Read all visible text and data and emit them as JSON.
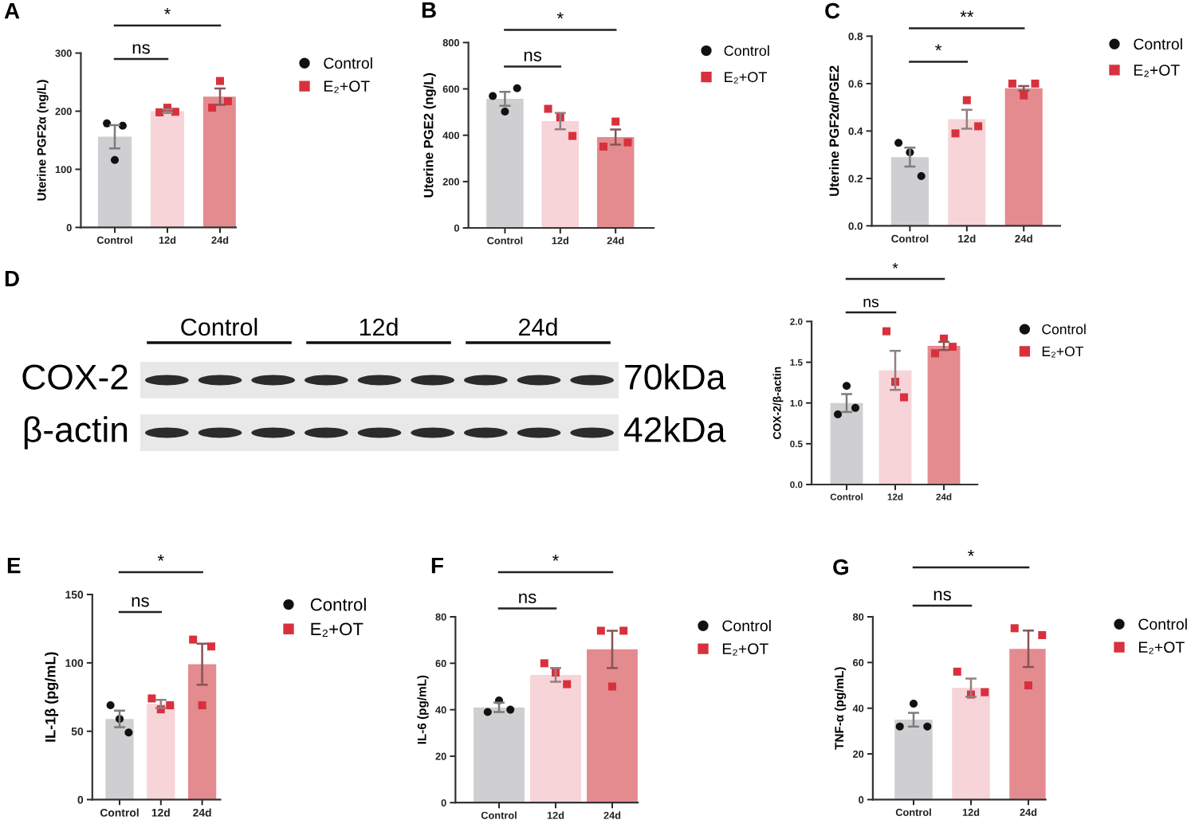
{
  "chart_data": [
    {
      "type": "bar",
      "title": "A",
      "ylabel": "Uterine PGF2α (ng/L)",
      "categories": [
        "Control",
        "12d",
        "24d"
      ],
      "ylim": [
        0,
        300
      ],
      "yticks": [
        0,
        100,
        200,
        300
      ],
      "legend": "right",
      "annotations": [
        "ns",
        "*"
      ],
      "series": [
        {
          "type": "bar",
          "values": [
            156,
            200,
            225
          ],
          "colors": [
            "#cfcfd1",
            "#f6d4d7",
            "#e38b8f"
          ],
          "errors": [
            20,
            3,
            14
          ]
        },
        {
          "type": "scatter",
          "name": "Control",
          "color": "#111111",
          "marker": "circle",
          "x": [
            "Control",
            "Control",
            "Control"
          ],
          "values": [
            179,
            116,
            175
          ]
        },
        {
          "type": "scatter",
          "name": "E₂+OT",
          "color": "#d8313d",
          "marker": "square",
          "x": [
            "12d",
            "12d",
            "12d",
            "24d",
            "24d",
            "24d"
          ],
          "values": [
            198,
            206,
            199,
            206,
            252,
            217
          ]
        }
      ]
    },
    {
      "type": "bar",
      "title": "B",
      "ylabel": "Uterine PGE2 (ng/L)",
      "categories": [
        "Control",
        "12d",
        "24d"
      ],
      "ylim": [
        0,
        800
      ],
      "yticks": [
        0,
        200,
        400,
        600,
        800
      ],
      "legend": "right",
      "annotations": [
        "ns",
        "*"
      ],
      "series": [
        {
          "type": "bar",
          "values": [
            557,
            461,
            392
          ],
          "colors": [
            "#cfcfd1",
            "#f6d4d7",
            "#e38b8f"
          ],
          "errors": [
            30,
            35,
            33
          ]
        },
        {
          "type": "scatter",
          "name": "Control",
          "color": "#111111",
          "marker": "circle",
          "x": [
            "Control",
            "Control",
            "Control"
          ],
          "values": [
            569,
            502,
            603
          ]
        },
        {
          "type": "scatter",
          "name": "E₂+OT",
          "color": "#d8313d",
          "marker": "square",
          "x": [
            "12d",
            "12d",
            "12d",
            "24d",
            "24d",
            "24d"
          ],
          "values": [
            514,
            477,
            397,
            351,
            459,
            369
          ]
        }
      ]
    },
    {
      "type": "bar",
      "title": "C",
      "ylabel": "Uterine PGF2α/PGE2",
      "categories": [
        "Control",
        "12d",
        "24d"
      ],
      "ylim": [
        0,
        0.8
      ],
      "yticks": [
        {
          "value": 0,
          "label": "0.0"
        },
        0.2,
        0.4,
        0.6,
        0.8
      ],
      "legend": "right",
      "annotations": [
        "*",
        "**"
      ],
      "series": [
        {
          "type": "bar",
          "values": [
            0.29,
            0.45,
            0.58
          ],
          "colors": [
            "#cfcfd1",
            "#f6d4d7",
            "#e38b8f"
          ],
          "errors": [
            0.04,
            0.04,
            0.01
          ]
        },
        {
          "type": "scatter",
          "name": "Control",
          "color": "#111111",
          "marker": "circle",
          "x": [
            "Control",
            "Control",
            "Control"
          ],
          "values": [
            0.35,
            0.31,
            0.21
          ]
        },
        {
          "type": "scatter",
          "name": "E₂+OT",
          "color": "#d8313d",
          "marker": "square",
          "x": [
            "12d",
            "12d",
            "12d",
            "24d",
            "24d",
            "24d"
          ],
          "values": [
            0.39,
            0.53,
            0.42,
            0.6,
            0.55,
            0.6
          ]
        }
      ]
    },
    {
      "type": "other",
      "title": "D",
      "categories": [
        "Control",
        "12d",
        "24d"
      ],
      "y_categories": [
        "COX-2",
        "β-actin"
      ],
      "y2_categories": [
        "70kDa",
        "42kDa"
      ]
    },
    {
      "type": "bar",
      "ylabel": "COX-2/β-actin",
      "categories": [
        "Control",
        "12d",
        "24d"
      ],
      "ylim": [
        0,
        2
      ],
      "yticks": [
        {
          "value": 0,
          "label": "0.0"
        },
        0.5,
        {
          "value": 1,
          "label": "1.0"
        },
        1.5,
        {
          "value": 2,
          "label": "2.0"
        }
      ],
      "legend": "right",
      "annotations": [
        "ns",
        "*"
      ],
      "series": [
        {
          "type": "bar",
          "values": [
            1.0,
            1.4,
            1.7
          ],
          "colors": [
            "#cfcfd1",
            "#f6d4d7",
            "#e38b8f"
          ],
          "errors": [
            0.11,
            0.24,
            0.05
          ]
        },
        {
          "type": "scatter",
          "name": "Control",
          "color": "#111111",
          "marker": "circle",
          "x": [
            "Control",
            "Control",
            "Control"
          ],
          "values": [
            0.86,
            1.21,
            0.94
          ]
        },
        {
          "type": "scatter",
          "name": "E₂+OT",
          "color": "#d8313d",
          "marker": "square",
          "x": [
            "12d",
            "12d",
            "12d",
            "24d",
            "24d",
            "24d"
          ],
          "values": [
            1.88,
            1.26,
            1.07,
            1.61,
            1.79,
            1.69
          ]
        }
      ]
    },
    {
      "type": "bar",
      "title": "E",
      "ylabel": "IL-1β (pg/mL)",
      "categories": [
        "Control",
        "12d",
        "24d"
      ],
      "ylim": [
        0,
        150
      ],
      "yticks": [
        0,
        50,
        100,
        150
      ],
      "legend": "right",
      "annotations": [
        "ns",
        "*"
      ],
      "series": [
        {
          "type": "bar",
          "values": [
            59,
            70,
            99
          ],
          "colors": [
            "#cfcfd1",
            "#f6d4d7",
            "#e38b8f"
          ],
          "errors": [
            6,
            3,
            15
          ]
        },
        {
          "type": "scatter",
          "name": "Control",
          "color": "#111111",
          "marker": "circle",
          "x": [
            "Control",
            "Control",
            "Control"
          ],
          "values": [
            69,
            59,
            49
          ]
        },
        {
          "type": "scatter",
          "name": "E₂+OT",
          "color": "#d8313d",
          "marker": "square",
          "x": [
            "12d",
            "12d",
            "12d",
            "24d",
            "24d",
            "24d"
          ],
          "values": [
            74,
            66,
            69,
            117,
            69,
            112
          ]
        }
      ]
    },
    {
      "type": "bar",
      "title": "F",
      "ylabel": "IL-6 (pg/mL)",
      "categories": [
        "Control",
        "12d",
        "24d"
      ],
      "ylim": [
        0,
        80
      ],
      "yticks": [
        0,
        20,
        40,
        60,
        80
      ],
      "legend": "right",
      "annotations": [
        "ns",
        "*"
      ],
      "series": [
        {
          "type": "bar",
          "values": [
            41,
            55,
            66
          ],
          "colors": [
            "#cfcfd1",
            "#f6d4d7",
            "#e38b8f"
          ],
          "errors": [
            2,
            3,
            8
          ]
        },
        {
          "type": "scatter",
          "name": "Control",
          "color": "#111111",
          "marker": "circle",
          "x": [
            "Control",
            "Control",
            "Control"
          ],
          "values": [
            39,
            44,
            40
          ]
        },
        {
          "type": "scatter",
          "name": "E₂+OT",
          "color": "#d8313d",
          "marker": "square",
          "x": [
            "12d",
            "12d",
            "12d",
            "24d",
            "24d",
            "24d"
          ],
          "values": [
            60,
            56,
            51,
            74,
            50,
            74
          ]
        }
      ]
    },
    {
      "type": "bar",
      "title": "G",
      "ylabel": "TNF-α (pg/mL)",
      "categories": [
        "Control",
        "12d",
        "24d"
      ],
      "ylim": [
        0,
        80
      ],
      "yticks": [
        0,
        20,
        40,
        60,
        80
      ],
      "legend": "right",
      "annotations": [
        "ns",
        "*"
      ],
      "series": [
        {
          "type": "bar",
          "values": [
            35,
            49,
            66
          ],
          "colors": [
            "#cfcfd1",
            "#f6d4d7",
            "#e38b8f"
          ],
          "errors": [
            3,
            4,
            8
          ]
        },
        {
          "type": "scatter",
          "name": "Control",
          "color": "#111111",
          "marker": "circle",
          "x": [
            "Control",
            "Control",
            "Control"
          ],
          "values": [
            32,
            42,
            32
          ]
        },
        {
          "type": "scatter",
          "name": "E₂+OT",
          "color": "#d8313d",
          "marker": "square",
          "x": [
            "12d",
            "12d",
            "12d",
            "24d",
            "24d",
            "24d"
          ],
          "values": [
            56,
            46,
            47,
            75,
            50,
            72
          ]
        }
      ]
    }
  ]
}
